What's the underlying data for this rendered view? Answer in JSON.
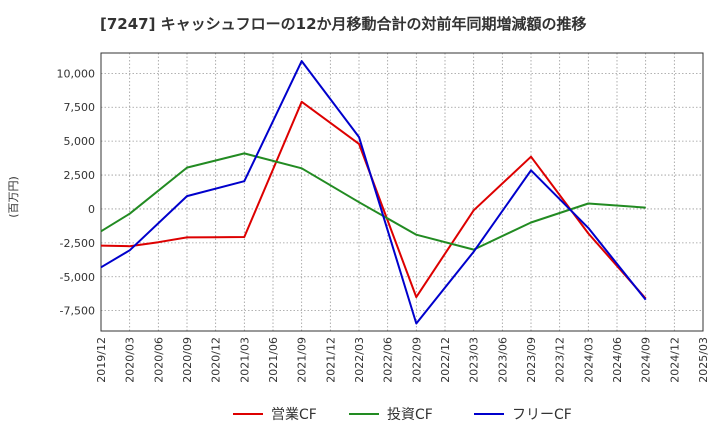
{
  "chart_data": {
    "type": "line",
    "title": "[7247]  キャッシュフローの12か月移動合計の対前年同期増減額の推移",
    "ylabel": "(百万円)",
    "xlabel": "",
    "ylim": [
      -9000,
      11500
    ],
    "yticks": [
      10000,
      7500,
      5000,
      2500,
      0,
      -2500,
      -5000,
      -7500
    ],
    "ytick_labels": [
      "10,000",
      "7,500",
      "5,000",
      "2,500",
      "0",
      "-2,500",
      "-5,000",
      "-7,500"
    ],
    "x": [
      "2019/12",
      "2020/03",
      "2020/06",
      "2020/09",
      "2020/12",
      "2021/03",
      "2021/06",
      "2021/09",
      "2021/12",
      "2022/03",
      "2022/06",
      "2022/09",
      "2022/12",
      "2023/03",
      "2023/06",
      "2023/09",
      "2023/12",
      "2024/03",
      "2024/06",
      "2024/09",
      "2024/12",
      "2025/03"
    ],
    "grid": true,
    "legend_position": "bottom",
    "series": [
      {
        "name": "営業CF",
        "color": "#dd0000",
        "values": [
          -2700,
          -2750,
          -2450,
          -2100,
          -2080,
          -2070,
          null,
          7900,
          null,
          4800,
          null,
          -6500,
          null,
          -100,
          null,
          3850,
          null,
          -1800,
          null,
          -6600,
          null,
          null
        ]
      },
      {
        "name": "投資CF",
        "color": "#228b22",
        "values": [
          -1650,
          -350,
          null,
          3050,
          null,
          4100,
          null,
          3000,
          null,
          500,
          null,
          -1900,
          null,
          -3000,
          null,
          -1000,
          null,
          400,
          null,
          100,
          null,
          null
        ]
      },
      {
        "name": "フリーCF",
        "color": "#0000cc",
        "values": [
          -4300,
          -3050,
          null,
          950,
          null,
          2050,
          null,
          10900,
          null,
          5300,
          null,
          -8450,
          null,
          -3150,
          null,
          2850,
          null,
          -1400,
          null,
          -6700,
          null,
          null
        ]
      }
    ]
  }
}
